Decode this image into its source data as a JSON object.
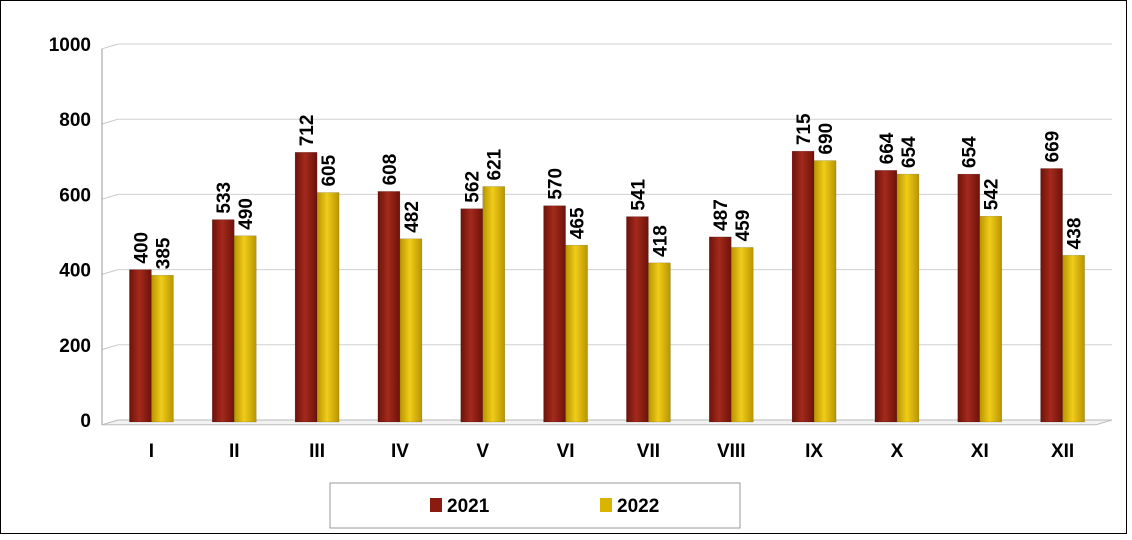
{
  "chart_data": {
    "type": "bar",
    "title": "",
    "xlabel": "",
    "ylabel": "",
    "categories": [
      "I",
      "II",
      "III",
      "IV",
      "V",
      "VI",
      "VII",
      "VIII",
      "IX",
      "X",
      "XI",
      "XII"
    ],
    "series": [
      {
        "name": "2021",
        "color": "#8B1A10",
        "values": [
          400,
          533,
          712,
          608,
          562,
          570,
          541,
          487,
          715,
          664,
          654,
          669
        ]
      },
      {
        "name": "2022",
        "color": "#D9B400",
        "values": [
          385,
          490,
          605,
          482,
          621,
          465,
          418,
          459,
          690,
          654,
          542,
          438
        ]
      }
    ],
    "ylim": [
      0,
      1000
    ],
    "yticks": [
      0,
      200,
      400,
      600,
      800,
      1000
    ],
    "grid": true,
    "legend": "bottom",
    "data_labels": true
  }
}
